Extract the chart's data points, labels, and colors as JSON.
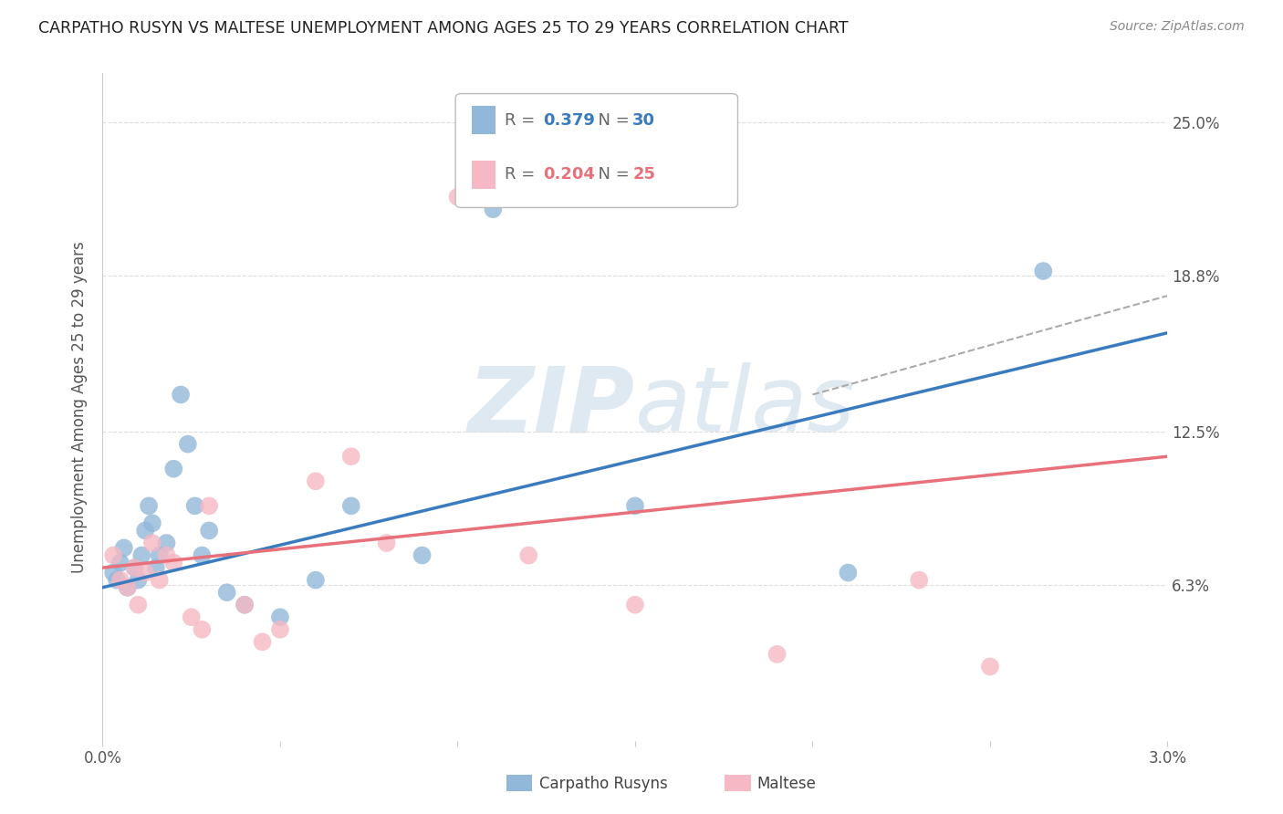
{
  "title": "CARPATHO RUSYN VS MALTESE UNEMPLOYMENT AMONG AGES 25 TO 29 YEARS CORRELATION CHART",
  "source": "Source: ZipAtlas.com",
  "ylabel": "Unemployment Among Ages 25 to 29 years",
  "xlim": [
    0.0,
    3.0
  ],
  "ylim": [
    0.0,
    27.0
  ],
  "xtick_labels": [
    "0.0%",
    "",
    "",
    "",
    "",
    "",
    "3.0%"
  ],
  "xtick_vals": [
    0.0,
    0.5,
    1.0,
    1.5,
    2.0,
    2.5,
    3.0
  ],
  "ytick_labels_right": [
    "6.3%",
    "12.5%",
    "18.8%",
    "25.0%"
  ],
  "ytick_values_right": [
    6.3,
    12.5,
    18.8,
    25.0
  ],
  "r_blue": "0.379",
  "n_blue": "30",
  "r_pink": "0.204",
  "n_pink": "25",
  "legend_label_blue": "Carpatho Rusyns",
  "legend_label_pink": "Maltese",
  "blue_scatter_color": "#92b8d9",
  "pink_scatter_color": "#f5b8c4",
  "blue_line_color": "#3a7bbf",
  "pink_line_color": "#e8707a",
  "blue_scatter_x": [
    0.03,
    0.04,
    0.05,
    0.06,
    0.07,
    0.09,
    0.1,
    0.11,
    0.12,
    0.13,
    0.14,
    0.15,
    0.16,
    0.18,
    0.2,
    0.22,
    0.24,
    0.26,
    0.28,
    0.3,
    0.35,
    0.4,
    0.5,
    0.6,
    0.7,
    0.9,
    1.1,
    1.5,
    2.1,
    2.65
  ],
  "blue_scatter_y": [
    6.8,
    6.5,
    7.2,
    7.8,
    6.2,
    7.0,
    6.5,
    7.5,
    8.5,
    9.5,
    8.8,
    7.0,
    7.5,
    8.0,
    11.0,
    14.0,
    12.0,
    9.5,
    7.5,
    8.5,
    6.0,
    5.5,
    5.0,
    6.5,
    9.5,
    7.5,
    21.5,
    9.5,
    6.8,
    19.0
  ],
  "pink_scatter_x": [
    0.03,
    0.05,
    0.07,
    0.09,
    0.1,
    0.12,
    0.14,
    0.16,
    0.18,
    0.2,
    0.25,
    0.28,
    0.3,
    0.4,
    0.45,
    0.5,
    0.6,
    0.7,
    0.8,
    1.0,
    1.2,
    1.5,
    1.9,
    2.3,
    2.5
  ],
  "pink_scatter_y": [
    7.5,
    6.5,
    6.2,
    7.0,
    5.5,
    6.8,
    8.0,
    6.5,
    7.5,
    7.2,
    5.0,
    4.5,
    9.5,
    5.5,
    4.0,
    4.5,
    10.5,
    11.5,
    8.0,
    22.0,
    7.5,
    5.5,
    3.5,
    6.5,
    3.0
  ],
  "blue_line_x0": 0.0,
  "blue_line_x1": 3.0,
  "blue_line_y0": 6.2,
  "blue_line_y1": 16.5,
  "pink_line_x0": 0.0,
  "pink_line_x1": 3.0,
  "pink_line_y0": 7.0,
  "pink_line_y1": 11.5,
  "dashed_line_x0": 2.0,
  "dashed_line_x1": 3.0,
  "dashed_line_y0": 14.0,
  "dashed_line_y1": 18.0,
  "background_color": "#ffffff",
  "grid_color": "#dddddd",
  "watermark_text": "ZIPatlas",
  "watermark_color": "#b8cfe0",
  "watermark_alpha": 0.45
}
